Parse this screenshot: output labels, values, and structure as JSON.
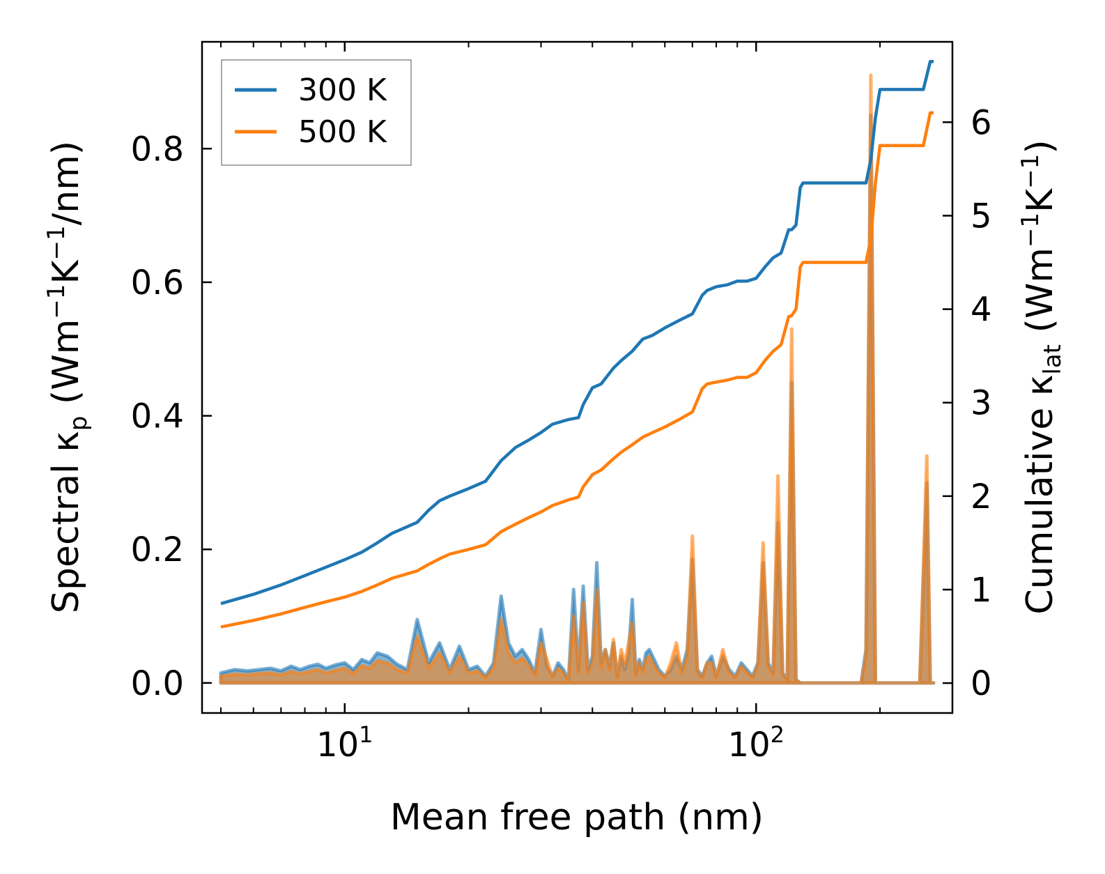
{
  "chart_data": {
    "type": "line",
    "xscale": "log",
    "xlim": [
      4.5,
      300
    ],
    "ylim_left": [
      -0.045,
      0.96
    ],
    "ylim_right": [
      -0.32,
      6.86
    ],
    "xlabel": "Mean free path (nm)",
    "ylabel_left": {
      "pre": "Spectral κ",
      "sub": "p",
      "post": " (Wm",
      "sup1": "−1",
      "mid": "K",
      "sup2": "−1",
      "end": "/nm)"
    },
    "ylabel_right": {
      "pre": "Cumulative κ",
      "sub": "lat",
      "post": " (Wm",
      "sup1": "−1",
      "mid": "K",
      "sup2": "−1",
      "end": ")"
    },
    "x_major_ticks": [
      {
        "value": 10,
        "base": "10",
        "exp": "1"
      },
      {
        "value": 100,
        "base": "10",
        "exp": "2"
      }
    ],
    "x_minor_ticks": [
      5,
      6,
      7,
      8,
      9,
      20,
      30,
      40,
      50,
      60,
      70,
      80,
      90,
      200,
      300
    ],
    "y_left_ticks": [
      {
        "value": 0.0,
        "label": "0.0"
      },
      {
        "value": 0.2,
        "label": "0.2"
      },
      {
        "value": 0.4,
        "label": "0.4"
      },
      {
        "value": 0.6,
        "label": "0.6"
      },
      {
        "value": 0.8,
        "label": "0.8"
      }
    ],
    "y_right_ticks": [
      {
        "value": 0,
        "label": "0"
      },
      {
        "value": 1,
        "label": "1"
      },
      {
        "value": 2,
        "label": "2"
      },
      {
        "value": 3,
        "label": "3"
      },
      {
        "value": 4,
        "label": "4"
      },
      {
        "value": 5,
        "label": "5"
      },
      {
        "value": 6,
        "label": "6"
      }
    ],
    "legend": {
      "position": "top-left",
      "entries": [
        "300 K",
        "500 K"
      ]
    },
    "series": [
      {
        "name": "300 K",
        "color": "#1f77b4",
        "axis": "right",
        "kind": "cumulative",
        "x": [
          5,
          6,
          7,
          8,
          9,
          10,
          11,
          12,
          13,
          15,
          16,
          17,
          18,
          20,
          22,
          24,
          26,
          28,
          30,
          32,
          35,
          37,
          38,
          40,
          42,
          45,
          47,
          50,
          53,
          56,
          60,
          65,
          70,
          74,
          76,
          80,
          85,
          90,
          95,
          100,
          105,
          110,
          115,
          120,
          122,
          125,
          128,
          130,
          135,
          140,
          150,
          160,
          170,
          185,
          190,
          195,
          200,
          210,
          220,
          230,
          240,
          255,
          265,
          270
        ],
        "values": [
          0.85,
          0.95,
          1.05,
          1.15,
          1.24,
          1.32,
          1.4,
          1.5,
          1.6,
          1.72,
          1.85,
          1.95,
          2.0,
          2.08,
          2.16,
          2.38,
          2.52,
          2.6,
          2.68,
          2.77,
          2.82,
          2.84,
          2.98,
          3.16,
          3.2,
          3.37,
          3.45,
          3.55,
          3.68,
          3.72,
          3.8,
          3.88,
          3.95,
          4.15,
          4.2,
          4.24,
          4.26,
          4.3,
          4.3,
          4.33,
          4.45,
          4.55,
          4.6,
          4.85,
          4.85,
          4.9,
          5.3,
          5.35,
          5.35,
          5.35,
          5.35,
          5.35,
          5.35,
          5.35,
          5.6,
          6.05,
          6.35,
          6.35,
          6.35,
          6.35,
          6.35,
          6.35,
          6.65,
          6.65
        ]
      },
      {
        "name": "500 K",
        "color": "#ff7f0e",
        "axis": "right",
        "kind": "cumulative",
        "x": [
          5,
          6,
          7,
          8,
          9,
          10,
          11,
          12,
          13,
          15,
          16,
          17,
          18,
          20,
          22,
          24,
          26,
          28,
          30,
          32,
          35,
          37,
          38,
          40,
          42,
          45,
          47,
          50,
          53,
          56,
          60,
          65,
          70,
          74,
          76,
          80,
          85,
          90,
          95,
          100,
          105,
          110,
          115,
          120,
          122,
          125,
          128,
          130,
          135,
          140,
          150,
          160,
          170,
          185,
          190,
          195,
          200,
          210,
          220,
          230,
          240,
          255,
          265,
          270
        ],
        "values": [
          0.6,
          0.67,
          0.74,
          0.81,
          0.87,
          0.92,
          0.98,
          1.05,
          1.12,
          1.2,
          1.27,
          1.33,
          1.38,
          1.43,
          1.48,
          1.62,
          1.7,
          1.77,
          1.83,
          1.9,
          1.96,
          1.99,
          2.1,
          2.23,
          2.28,
          2.4,
          2.47,
          2.55,
          2.63,
          2.68,
          2.74,
          2.82,
          2.9,
          3.15,
          3.2,
          3.22,
          3.24,
          3.27,
          3.27,
          3.32,
          3.45,
          3.55,
          3.62,
          3.92,
          3.93,
          4.0,
          4.45,
          4.5,
          4.5,
          4.5,
          4.5,
          4.5,
          4.5,
          4.5,
          4.75,
          5.35,
          5.75,
          5.75,
          5.75,
          5.75,
          5.75,
          5.75,
          6.1,
          6.1
        ]
      },
      {
        "name": "300 K spectral",
        "color": "#1f77b4",
        "axis": "left",
        "kind": "spectral",
        "x": [
          5,
          5.4,
          5.8,
          6.2,
          6.6,
          7.0,
          7.4,
          7.8,
          8.2,
          8.6,
          9.0,
          9.5,
          10,
          10.5,
          11,
          11.5,
          12,
          12.7,
          13.4,
          14.2,
          15,
          16,
          17,
          18,
          19,
          20,
          21,
          22,
          23,
          24,
          25,
          26,
          27,
          28,
          29,
          30,
          31,
          32,
          33,
          34,
          35,
          36,
          37,
          38,
          39,
          40,
          41,
          42,
          43,
          44,
          45,
          46,
          47,
          48,
          49,
          50,
          51,
          52,
          53,
          54,
          55,
          56,
          58,
          60,
          62,
          64,
          66,
          68,
          70,
          72,
          74,
          76,
          78,
          80,
          83,
          86,
          89,
          92,
          95,
          98,
          101,
          104,
          107,
          110,
          113,
          116,
          119,
          122,
          125,
          128,
          131,
          134,
          160,
          180,
          185,
          190,
          195,
          200,
          210,
          230,
          250,
          260,
          265,
          270
        ],
        "values": [
          0.015,
          0.02,
          0.018,
          0.02,
          0.022,
          0.018,
          0.025,
          0.02,
          0.025,
          0.028,
          0.022,
          0.027,
          0.03,
          0.02,
          0.035,
          0.03,
          0.045,
          0.04,
          0.028,
          0.02,
          0.095,
          0.03,
          0.06,
          0.02,
          0.055,
          0.02,
          0.025,
          0.01,
          0.03,
          0.13,
          0.06,
          0.04,
          0.05,
          0.035,
          0.015,
          0.08,
          0.025,
          0.01,
          0.03,
          0.02,
          0.005,
          0.14,
          0.02,
          0.145,
          0.02,
          0.04,
          0.18,
          0.03,
          0.05,
          0.025,
          0.06,
          0.01,
          0.04,
          0.02,
          0.045,
          0.125,
          0.015,
          0.035,
          0.02,
          0.045,
          0.05,
          0.04,
          0.02,
          0.01,
          0.02,
          0.04,
          0.02,
          0.05,
          0.185,
          0.02,
          0.01,
          0.03,
          0.04,
          0.01,
          0.04,
          0.02,
          0.01,
          0.03,
          0.02,
          0.01,
          0.03,
          0.18,
          0.03,
          0.015,
          0.24,
          0.015,
          0.005,
          0.45,
          0.005,
          0.0,
          0.0,
          0.0,
          0.0,
          0.0,
          0.05,
          0.85,
          0.0,
          0.0,
          0.0,
          0.0,
          0.0,
          0.3,
          0.0,
          0.0
        ]
      },
      {
        "name": "500 K spectral",
        "color": "#ff7f0e",
        "axis": "left",
        "kind": "spectral",
        "x": [
          5,
          5.4,
          5.8,
          6.2,
          6.6,
          7.0,
          7.4,
          7.8,
          8.2,
          8.6,
          9.0,
          9.5,
          10,
          10.5,
          11,
          11.5,
          12,
          12.7,
          13.4,
          14.2,
          15,
          16,
          17,
          18,
          19,
          20,
          21,
          22,
          23,
          24,
          25,
          26,
          27,
          28,
          29,
          30,
          31,
          32,
          33,
          34,
          35,
          36,
          37,
          38,
          39,
          40,
          41,
          42,
          43,
          44,
          45,
          46,
          47,
          48,
          49,
          50,
          51,
          52,
          53,
          54,
          55,
          56,
          58,
          60,
          62,
          64,
          66,
          68,
          70,
          72,
          74,
          76,
          78,
          80,
          83,
          86,
          89,
          92,
          95,
          98,
          101,
          104,
          107,
          110,
          113,
          116,
          119,
          122,
          125,
          128,
          131,
          134,
          160,
          180,
          185,
          190,
          195,
          200,
          210,
          230,
          250,
          260,
          265,
          270
        ],
        "values": [
          0.01,
          0.013,
          0.012,
          0.014,
          0.015,
          0.012,
          0.017,
          0.014,
          0.017,
          0.02,
          0.015,
          0.019,
          0.022,
          0.014,
          0.026,
          0.022,
          0.033,
          0.03,
          0.02,
          0.015,
          0.07,
          0.022,
          0.045,
          0.015,
          0.04,
          0.015,
          0.018,
          0.008,
          0.022,
          0.095,
          0.045,
          0.03,
          0.037,
          0.026,
          0.011,
          0.06,
          0.035,
          0.008,
          0.022,
          0.015,
          0.004,
          0.1,
          0.015,
          0.12,
          0.015,
          0.03,
          0.14,
          0.022,
          0.05,
          0.02,
          0.065,
          0.008,
          0.05,
          0.03,
          0.06,
          0.09,
          0.011,
          0.03,
          0.015,
          0.035,
          0.04,
          0.03,
          0.015,
          0.008,
          0.03,
          0.06,
          0.015,
          0.04,
          0.22,
          0.015,
          0.008,
          0.03,
          0.03,
          0.008,
          0.05,
          0.015,
          0.008,
          0.025,
          0.015,
          0.008,
          0.025,
          0.21,
          0.025,
          0.012,
          0.31,
          0.012,
          0.004,
          0.53,
          0.004,
          0.0,
          0.0,
          0.0,
          0.0,
          0.0,
          0.04,
          0.91,
          0.0,
          0.0,
          0.0,
          0.0,
          0.0,
          0.34,
          0.0,
          0.0
        ]
      }
    ]
  }
}
